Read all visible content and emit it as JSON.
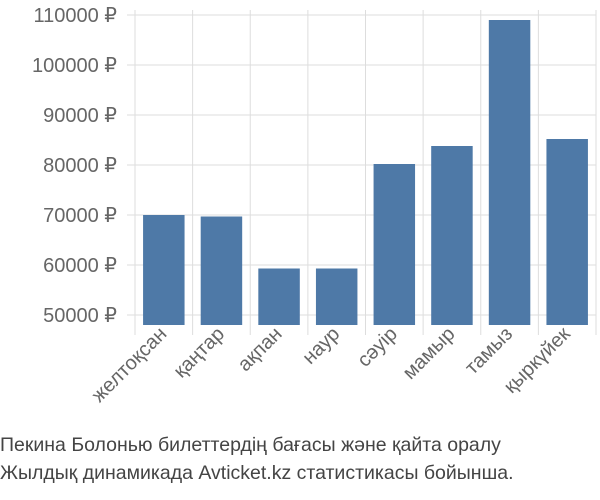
{
  "chart_data": {
    "type": "bar",
    "categories": [
      "желтоқсан",
      "қаңтар",
      "ақпан",
      "наур",
      "сәуір",
      "мамыр",
      "тамыз",
      "қыркүйек"
    ],
    "values": [
      70000,
      69700,
      59300,
      59300,
      80200,
      83800,
      109000,
      85200
    ],
    "y_ticks": [
      50000,
      60000,
      70000,
      80000,
      90000,
      100000,
      110000
    ],
    "tick_suffix": " ₽",
    "ylim": [
      48000,
      111000
    ],
    "grid": true,
    "bar_color": "#4e79a7",
    "grid_color": "#dddddd"
  },
  "caption": {
    "line1": "Пекина Болонью билеттердің бағасы және қайта оралу",
    "line2": "Жылдық динамикада Avticket.kz статистикасы бойынша."
  }
}
